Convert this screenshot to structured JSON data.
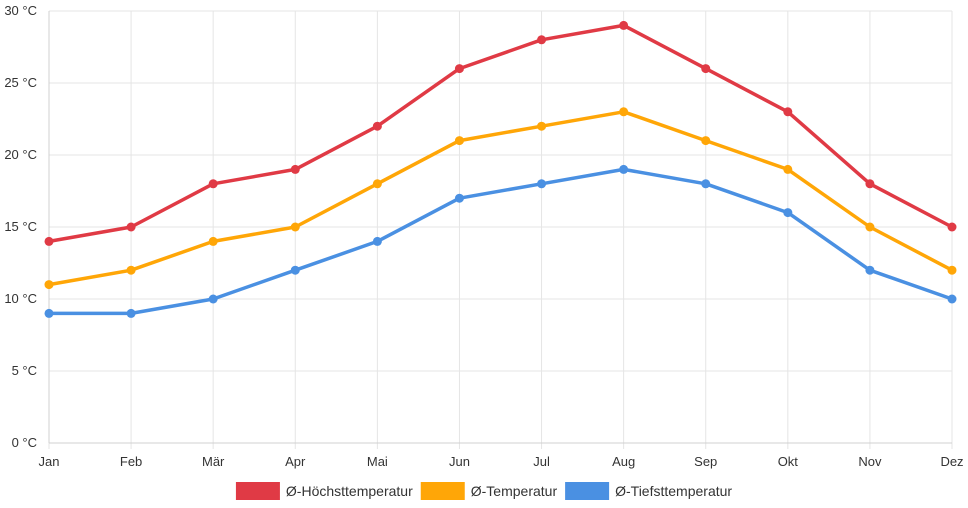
{
  "chart_data": {
    "type": "line",
    "categories": [
      "Jan",
      "Feb",
      "Mär",
      "Apr",
      "Mai",
      "Jun",
      "Jul",
      "Aug",
      "Sep",
      "Okt",
      "Nov",
      "Dez"
    ],
    "y_ticks": [
      "0 °C",
      "5 °C",
      "10 °C",
      "15 °C",
      "20 °C",
      "25 °C",
      "30 °C"
    ],
    "ylim": [
      0,
      30
    ],
    "y_step": 5,
    "grid": true,
    "legend_position": "bottom",
    "series": [
      {
        "name": "Ø-Höchsttemperatur",
        "color": "#E03A45",
        "values": [
          14,
          15,
          18,
          19,
          22,
          26,
          28,
          29,
          26,
          23,
          18,
          15
        ]
      },
      {
        "name": "Ø-Temperatur",
        "color": "#FFA607",
        "values": [
          11,
          12,
          14,
          15,
          18,
          21,
          22,
          23,
          21,
          19,
          15,
          12
        ]
      },
      {
        "name": "Ø-Tiefsttemperatur",
        "color": "#4A90E2",
        "values": [
          9,
          9,
          10,
          12,
          14,
          17,
          18,
          19,
          18,
          16,
          12,
          10
        ]
      }
    ]
  }
}
